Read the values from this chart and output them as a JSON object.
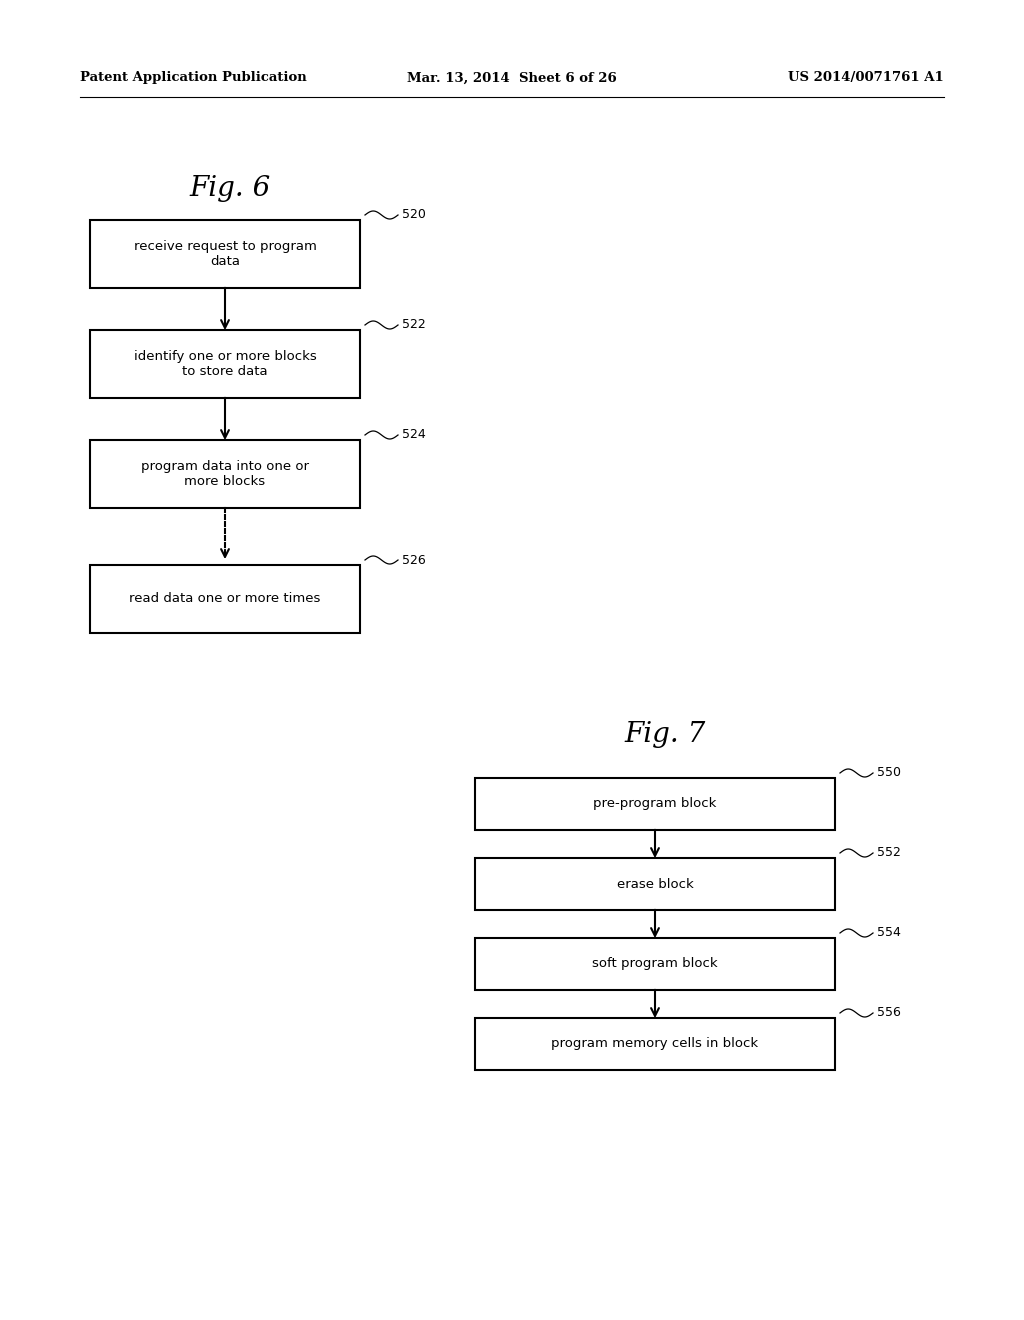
{
  "bg_color": "#ffffff",
  "header_left": "Patent Application Publication",
  "header_mid": "Mar. 13, 2014  Sheet 6 of 26",
  "header_right": "US 2014/0071761 A1",
  "fig6_title": "Fig. 6",
  "fig7_title": "Fig. 7",
  "fig6_boxes": [
    {
      "label": "receive request to program\ndata",
      "ref": "520"
    },
    {
      "label": "identify one or more blocks\nto store data",
      "ref": "522"
    },
    {
      "label": "program data into one or\nmore blocks",
      "ref": "524"
    },
    {
      "label": "read data one or more times",
      "ref": "526"
    }
  ],
  "fig7_boxes": [
    {
      "label": "pre-program block",
      "ref": "550"
    },
    {
      "label": "erase block",
      "ref": "552"
    },
    {
      "label": "soft program block",
      "ref": "554"
    },
    {
      "label": "program memory cells in block",
      "ref": "556"
    }
  ],
  "text_color": "#000000"
}
